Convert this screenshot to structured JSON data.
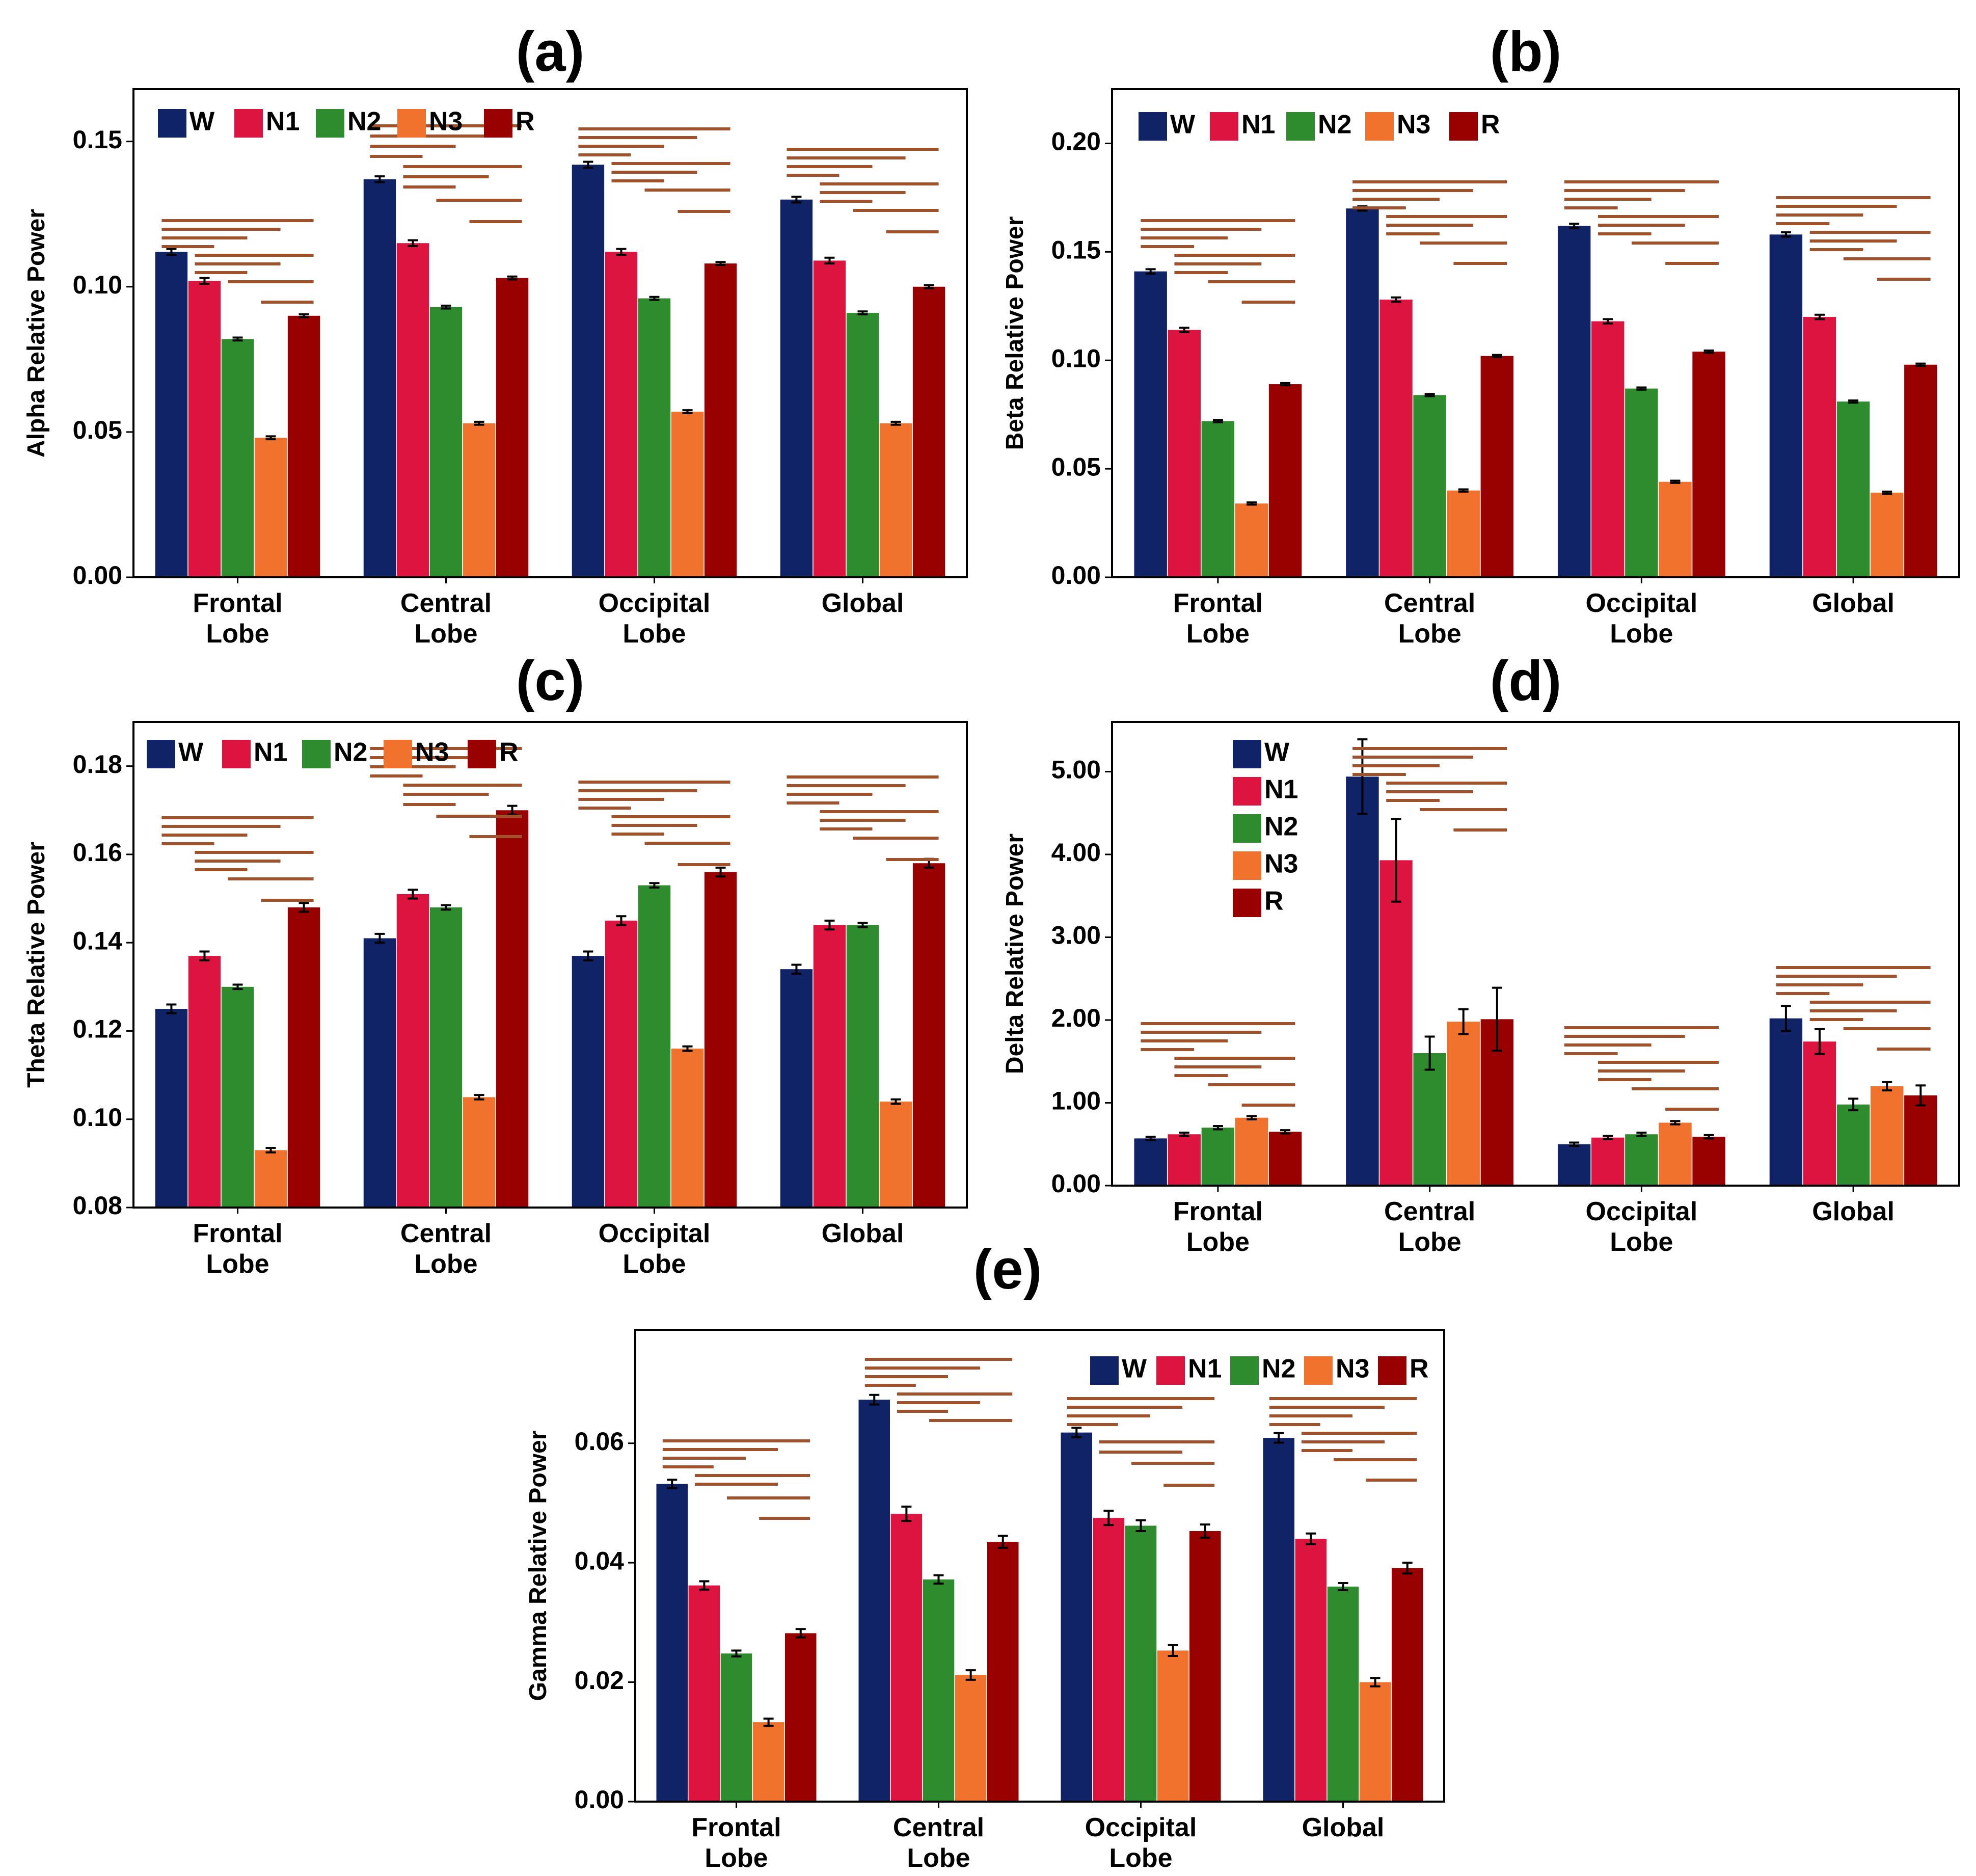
{
  "colors": {
    "W": "#0f2366",
    "N1": "#de1440",
    "N2": "#2e8b2e",
    "N3": "#f0722c",
    "R": "#990000",
    "sig": "#a0522d"
  },
  "chart_data": [
    {
      "type": "bar",
      "panel_label": "(a)",
      "ylabel": "Alpha Relative Power",
      "ylim": [
        0,
        0.168
      ],
      "yticks": [
        "0.00",
        "0.05",
        "0.10",
        "0.15"
      ],
      "legend_position": "top-left",
      "categories": [
        "Frontal\nLobe",
        "Central\nLobe",
        "Occipital\nLobe",
        "Global"
      ],
      "series": [
        {
          "name": "W",
          "values": [
            0.112,
            0.137,
            0.142,
            0.13
          ],
          "errors": [
            0.001,
            0.001,
            0.001,
            0.001
          ]
        },
        {
          "name": "N1",
          "values": [
            0.102,
            0.115,
            0.112,
            0.109
          ],
          "errors": [
            0.001,
            0.001,
            0.001,
            0.001
          ]
        },
        {
          "name": "N2",
          "values": [
            0.082,
            0.093,
            0.096,
            0.091
          ],
          "errors": [
            0.0005,
            0.0005,
            0.0005,
            0.0005
          ]
        },
        {
          "name": "N3",
          "values": [
            0.048,
            0.053,
            0.057,
            0.053
          ],
          "errors": [
            0.0005,
            0.0005,
            0.0005,
            0.0005
          ]
        },
        {
          "name": "R",
          "values": [
            0.09,
            0.103,
            0.108,
            0.1
          ],
          "errors": [
            0.0005,
            0.0005,
            0.0005,
            0.0005
          ]
        }
      ]
    },
    {
      "type": "bar",
      "panel_label": "(b)",
      "ylabel": "Beta Relative Power",
      "ylim": [
        0,
        0.225
      ],
      "yticks": [
        "0.00",
        "0.05",
        "0.10",
        "0.15",
        "0.20"
      ],
      "legend_position": "top-left",
      "categories": [
        "Frontal\nLobe",
        "Central\nLobe",
        "Occipital\nLobe",
        "Global"
      ],
      "series": [
        {
          "name": "W",
          "values": [
            0.141,
            0.17,
            0.162,
            0.158
          ],
          "errors": [
            0.001,
            0.001,
            0.001,
            0.001
          ]
        },
        {
          "name": "N1",
          "values": [
            0.114,
            0.128,
            0.118,
            0.12
          ],
          "errors": [
            0.001,
            0.001,
            0.001,
            0.001
          ]
        },
        {
          "name": "N2",
          "values": [
            0.072,
            0.084,
            0.087,
            0.081
          ],
          "errors": [
            0.0005,
            0.0005,
            0.0005,
            0.0005
          ]
        },
        {
          "name": "N3",
          "values": [
            0.034,
            0.04,
            0.044,
            0.039
          ],
          "errors": [
            0.0005,
            0.0005,
            0.0005,
            0.0005
          ]
        },
        {
          "name": "R",
          "values": [
            0.089,
            0.102,
            0.104,
            0.098
          ],
          "errors": [
            0.0005,
            0.0005,
            0.0005,
            0.0005
          ]
        }
      ]
    },
    {
      "type": "bar",
      "panel_label": "(c)",
      "ylabel": "Theta Relative Power",
      "ylim": [
        0.08,
        0.19
      ],
      "yticks": [
        "0.08",
        "0.10",
        "0.12",
        "0.14",
        "0.16",
        "0.18"
      ],
      "legend_position": "top-left",
      "categories": [
        "Frontal\nLobe",
        "Central\nLobe",
        "Occipital\nLobe",
        "Global"
      ],
      "series": [
        {
          "name": "W",
          "values": [
            0.125,
            0.141,
            0.137,
            0.134
          ],
          "errors": [
            0.001,
            0.001,
            0.001,
            0.001
          ]
        },
        {
          "name": "N1",
          "values": [
            0.137,
            0.151,
            0.145,
            0.144
          ],
          "errors": [
            0.001,
            0.001,
            0.001,
            0.001
          ]
        },
        {
          "name": "N2",
          "values": [
            0.13,
            0.148,
            0.153,
            0.144
          ],
          "errors": [
            0.0005,
            0.0005,
            0.0005,
            0.0005
          ]
        },
        {
          "name": "N3",
          "values": [
            0.093,
            0.105,
            0.116,
            0.104
          ],
          "errors": [
            0.0005,
            0.0005,
            0.0005,
            0.0005
          ]
        },
        {
          "name": "R",
          "values": [
            0.148,
            0.17,
            0.156,
            0.158
          ],
          "errors": [
            0.001,
            0.001,
            0.001,
            0.001
          ]
        }
      ]
    },
    {
      "type": "bar",
      "panel_label": "(d)",
      "ylabel": "Delta Relative Power",
      "ylim": [
        0,
        5.6
      ],
      "yticks": [
        "0.00",
        "1.00",
        "2.00",
        "3.00",
        "4.00",
        "5.00"
      ],
      "legend_position": "upper-left-inside, vertical",
      "categories": [
        "Frontal\nLobe",
        "Central\nLobe",
        "Occipital\nLobe",
        "Global"
      ],
      "series": [
        {
          "name": "W",
          "values": [
            0.57,
            4.94,
            0.5,
            2.02
          ],
          "errors": [
            0.02,
            0.45,
            0.02,
            0.15
          ]
        },
        {
          "name": "N1",
          "values": [
            0.62,
            3.93,
            0.58,
            1.74
          ],
          "errors": [
            0.02,
            0.5,
            0.02,
            0.15
          ]
        },
        {
          "name": "N2",
          "values": [
            0.7,
            1.6,
            0.62,
            0.98
          ],
          "errors": [
            0.02,
            0.2,
            0.02,
            0.07
          ]
        },
        {
          "name": "N3",
          "values": [
            0.82,
            1.98,
            0.76,
            1.2
          ],
          "errors": [
            0.02,
            0.15,
            0.02,
            0.05
          ]
        },
        {
          "name": "R",
          "values": [
            0.65,
            2.01,
            0.59,
            1.09
          ],
          "errors": [
            0.02,
            0.38,
            0.02,
            0.12
          ]
        }
      ]
    },
    {
      "type": "bar",
      "panel_label": "(e)",
      "ylabel": "Gamma Relative Power",
      "ylim": [
        0,
        0.079
      ],
      "yticks": [
        "0.00",
        "0.02",
        "0.04",
        "0.06"
      ],
      "legend_position": "top-right",
      "categories": [
        "Frontal\nLobe",
        "Central\nLobe",
        "Occipital\nLobe",
        "Global"
      ],
      "series": [
        {
          "name": "W",
          "values": [
            0.0532,
            0.0673,
            0.0618,
            0.0609
          ],
          "errors": [
            0.0007,
            0.0008,
            0.0008,
            0.0008
          ]
        },
        {
          "name": "N1",
          "values": [
            0.0362,
            0.0482,
            0.0475,
            0.044
          ],
          "errors": [
            0.0007,
            0.0012,
            0.0012,
            0.0009
          ]
        },
        {
          "name": "N2",
          "values": [
            0.0248,
            0.0372,
            0.0462,
            0.036
          ],
          "errors": [
            0.0005,
            0.0007,
            0.0009,
            0.0006
          ]
        },
        {
          "name": "N3",
          "values": [
            0.0133,
            0.0212,
            0.0253,
            0.02
          ],
          "errors": [
            0.0006,
            0.0008,
            0.0009,
            0.0007
          ]
        },
        {
          "name": "R",
          "values": [
            0.0282,
            0.0435,
            0.0453,
            0.0391
          ],
          "errors": [
            0.0007,
            0.001,
            0.0011,
            0.0009
          ]
        }
      ]
    }
  ]
}
